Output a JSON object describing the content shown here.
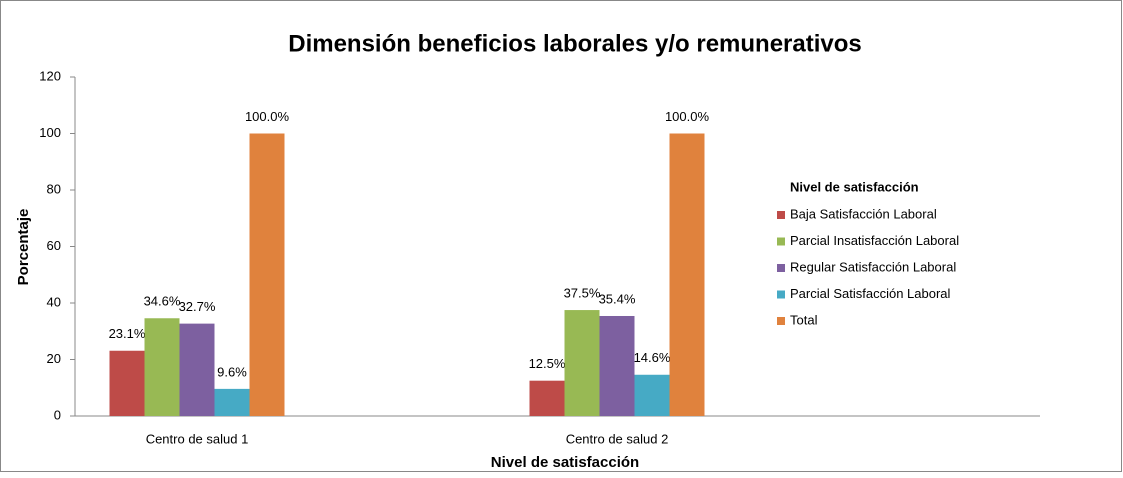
{
  "chart_data": {
    "type": "bar",
    "title": "Dimensión beneficios laborales y/o remunerativos",
    "x_label": "Nivel de satisfacción",
    "y_label": "Porcentaje",
    "legend_title": "Nivel de satisfacción",
    "categories": [
      "Centro de salud 1",
      "Centro de salud 2"
    ],
    "series": [
      {
        "name": "Baja Satisfacción Laboral",
        "color": "#be4b48",
        "values": [
          23.1,
          12.5
        ],
        "value_labels": [
          "23.1%",
          "12.5%"
        ]
      },
      {
        "name": "Parcial Insatisfacción Laboral",
        "color": "#98b954",
        "values": [
          34.6,
          37.5
        ],
        "value_labels": [
          "34.6%",
          "37.5%"
        ]
      },
      {
        "name": "Regular Satisfacción Laboral",
        "color": "#7d60a0",
        "values": [
          32.7,
          35.4
        ],
        "value_labels": [
          "32.7%",
          "35.4%"
        ]
      },
      {
        "name": "Parcial Satisfacción Laboral",
        "color": "#46aac5",
        "values": [
          9.6,
          14.6
        ],
        "value_labels": [
          "9.6%",
          "14.6%"
        ]
      },
      {
        "name": "Total",
        "color": "#e0823d",
        "values": [
          100,
          100
        ],
        "value_labels": [
          "100.0%",
          "100.0%"
        ]
      }
    ],
    "ylim": [
      0,
      120
    ],
    "yticks": [
      0,
      20,
      40,
      60,
      80,
      100,
      120
    ],
    "grid": false,
    "legend": "right"
  }
}
